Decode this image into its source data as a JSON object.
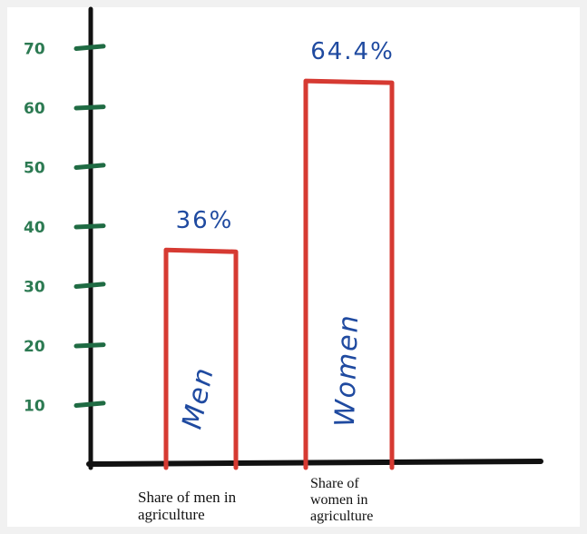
{
  "chart_data": {
    "type": "bar",
    "categories": [
      "Men",
      "Women"
    ],
    "values": [
      36,
      64.4
    ],
    "data_labels": [
      "36%",
      "64.4%"
    ],
    "category_captions": [
      "Share of men in agriculture",
      "Share of women in agriculture"
    ],
    "title": "",
    "xlabel": "",
    "ylabel": "",
    "ylim": [
      0,
      70
    ],
    "yticks": [
      10,
      20,
      30,
      40,
      50,
      60,
      70
    ],
    "ytick_labels": [
      "10",
      "20",
      "30",
      "40",
      "50",
      "60",
      "70"
    ],
    "grid": false,
    "legend": "none",
    "colors": {
      "axis": "#111111",
      "bar_outline": "#d63a32",
      "tick_mark": "#1f6b43",
      "tick_label": "#2c7a52",
      "bar_text": "#1f4aa0",
      "caption": "#111111",
      "background": "#ffffff",
      "frame": "#f1f1f1"
    }
  }
}
